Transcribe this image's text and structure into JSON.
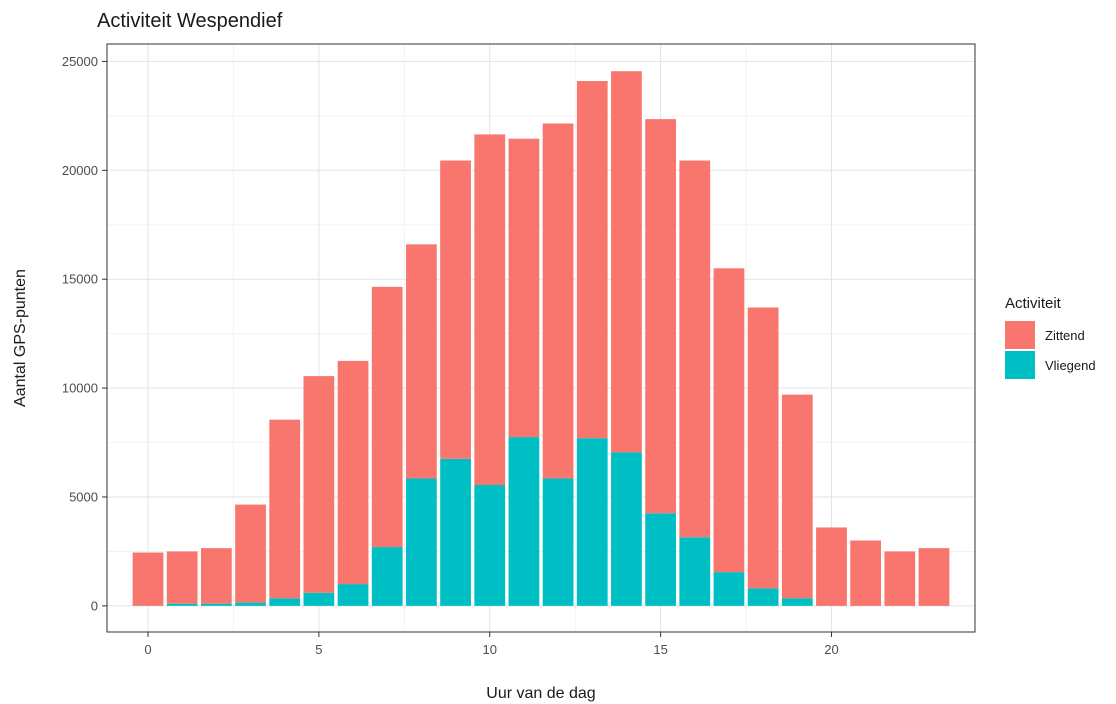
{
  "chart_data": {
    "type": "bar",
    "stacked": true,
    "title": "Activiteit Wespendief",
    "xlabel": "Uur van de dag",
    "ylabel": "Aantal GPS-punten",
    "x": [
      0,
      1,
      2,
      3,
      4,
      5,
      6,
      7,
      8,
      9,
      10,
      11,
      12,
      13,
      14,
      15,
      16,
      17,
      18,
      19,
      20,
      21,
      22,
      23
    ],
    "xticks": [
      0,
      5,
      10,
      15,
      20
    ],
    "yticks": [
      0,
      5000,
      10000,
      15000,
      20000,
      25000
    ],
    "xlim": [
      -1.2,
      24.2
    ],
    "ylim": [
      -1200,
      25800
    ],
    "grid": true,
    "legend_position": "right",
    "legend_title": "Activiteit",
    "series": [
      {
        "name": "Zittend",
        "color": "#F8766D",
        "values": [
          2450,
          2400,
          2550,
          4500,
          8200,
          9950,
          10250,
          11950,
          10750,
          13700,
          16100,
          13700,
          16300,
          16400,
          17500,
          18100,
          17300,
          13950,
          12900,
          9350,
          3600,
          3000,
          2500,
          2650
        ]
      },
      {
        "name": "Vliegend",
        "color": "#00BFC4",
        "values": [
          0,
          100,
          100,
          150,
          350,
          600,
          1000,
          2700,
          5850,
          6750,
          5550,
          7750,
          5850,
          7700,
          7050,
          4250,
          3150,
          1550,
          800,
          350,
          0,
          0,
          0,
          0
        ]
      }
    ]
  }
}
